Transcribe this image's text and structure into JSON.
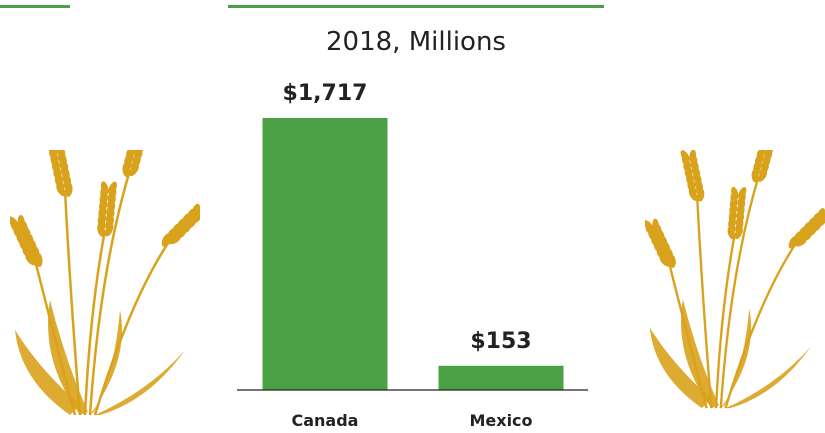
{
  "colors": {
    "accent": "#4CA046",
    "wheat": "#D9A21C",
    "axis": "#222222"
  },
  "header": {
    "subtitle": "2018, Millions"
  },
  "decorations": {
    "left_icon": "wheat-icon",
    "right_icon": "wheat-icon"
  },
  "chart_data": {
    "type": "bar",
    "title": "",
    "subtitle": "2018, Millions",
    "xlabel": "",
    "ylabel": "",
    "categories": [
      "Canada",
      "Mexico"
    ],
    "values": [
      1717,
      153
    ],
    "value_labels": [
      "$1,717",
      "$153"
    ],
    "ylim": [
      0,
      1717
    ],
    "grid": false,
    "legend": "none"
  }
}
